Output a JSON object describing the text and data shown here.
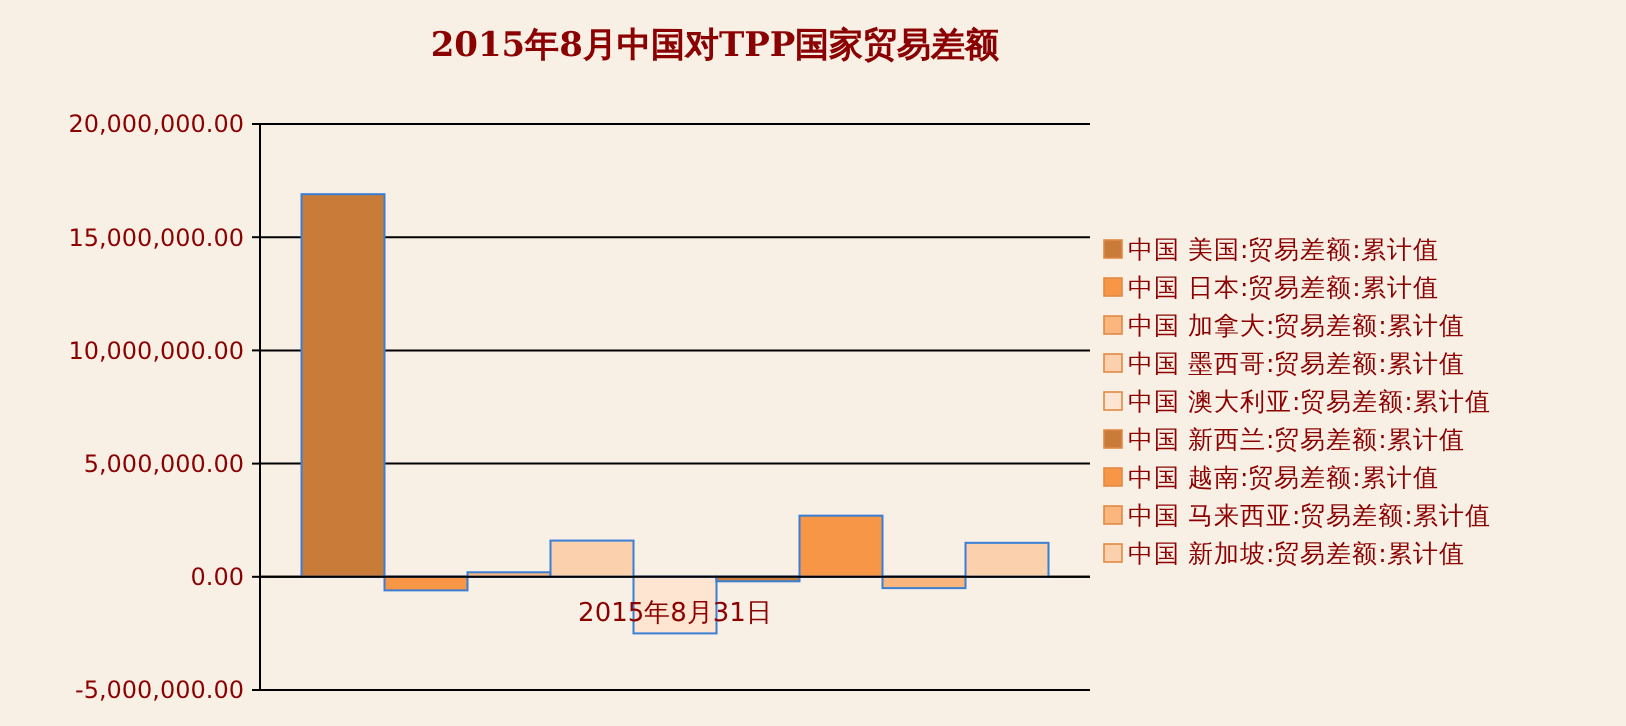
{
  "chart_data": {
    "type": "bar",
    "title": "2015年8月中国对TPP国家贸易差额",
    "categories": [
      "2015年8月31日"
    ],
    "series": [
      {
        "name": "中国 美国:贸易差额:累计值",
        "color": "#c97b3a",
        "values": [
          16900000
        ]
      },
      {
        "name": "中国 日本:贸易差额:累计值",
        "color": "#f79646",
        "values": [
          -600000
        ]
      },
      {
        "name": "中国 加拿大:贸易差额:累计值",
        "color": "#f9b67f",
        "values": [
          200000
        ]
      },
      {
        "name": "中国 墨西哥:贸易差额:累计值",
        "color": "#fbd0ad",
        "values": [
          1600000
        ]
      },
      {
        "name": "中国 澳大利亚:贸易差额:累计值",
        "color": "#fde5d1",
        "values": [
          -2500000
        ]
      },
      {
        "name": "中国 新西兰:贸易差额:累计值",
        "color": "#c97b3a",
        "values": [
          -200000
        ]
      },
      {
        "name": "中国 越南:贸易差额:累计值",
        "color": "#f79646",
        "values": [
          2700000
        ]
      },
      {
        "name": "中国 马来西亚:贸易差额:累计值",
        "color": "#f9b67f",
        "values": [
          -500000
        ]
      },
      {
        "name": "中国 新加坡:贸易差额:累计值",
        "color": "#fbd0ad",
        "values": [
          1500000
        ]
      }
    ],
    "ylim": [
      -5000000,
      20000000
    ],
    "yticks": [
      {
        "value": -5000000,
        "label": "-5,000,000.00"
      },
      {
        "value": 0,
        "label": "0.00"
      },
      {
        "value": 5000000,
        "label": "5,000,000.00"
      },
      {
        "value": 10000000,
        "label": "10,000,000.00"
      },
      {
        "value": 15000000,
        "label": "15,000,000.00"
      },
      {
        "value": 20000000,
        "label": "20,000,000.00"
      }
    ],
    "grid": "y",
    "legend": "right"
  }
}
